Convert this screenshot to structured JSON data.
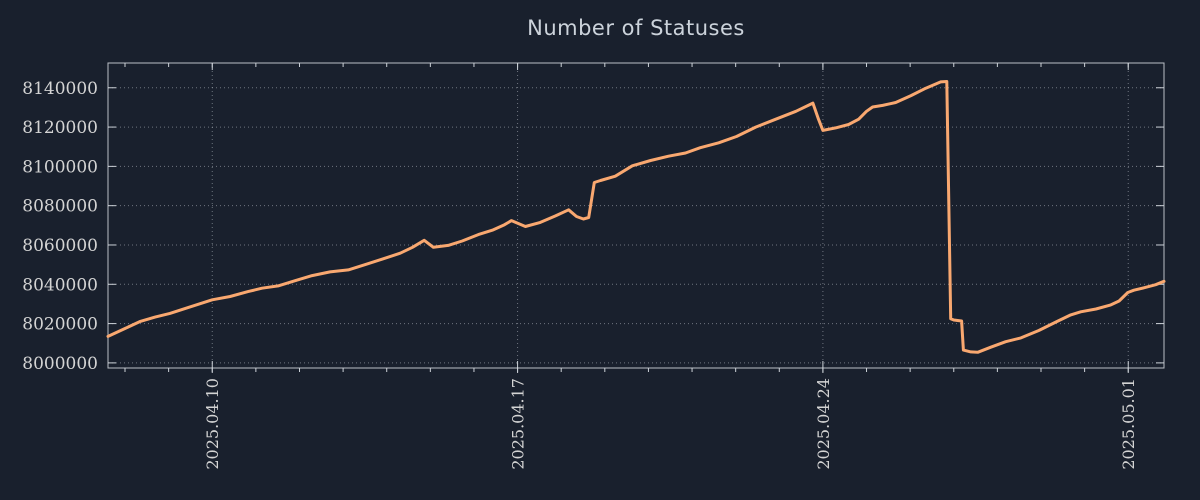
{
  "title": "Number of Statuses",
  "colors": {
    "background": "#19202d",
    "line": "#f9a870",
    "grid": "#c3c9d1",
    "axis": "#cdd2d8",
    "tick_text": "#d4d4d4",
    "title_text": "#ccd3db"
  },
  "chart_data": {
    "type": "line",
    "title": "Number of Statuses",
    "legend": "none",
    "grid": "dotted",
    "x_axis": {
      "note": "x positions are days since 2025-04-06 00:00",
      "range": [
        1.61,
        25.82
      ],
      "tick_pos": [
        4,
        11,
        18,
        25
      ],
      "tick_labels": [
        "2025.04.10",
        "2025.04.17",
        "2025.04.24",
        "2025.05.01"
      ],
      "minor_tick_step": 1
    },
    "y_axis": {
      "range": [
        7997400,
        8152600
      ],
      "tick_values": [
        8000000,
        8020000,
        8040000,
        8060000,
        8080000,
        8100000,
        8120000,
        8140000
      ],
      "tick_labels": [
        "8000000",
        "8020000",
        "8040000",
        "8060000",
        "8080000",
        "8100000",
        "8120000",
        "8140000"
      ]
    },
    "series": [
      {
        "name": "statuses",
        "color": "#f9a870",
        "points": [
          [
            1.61,
            8013500
          ],
          [
            2.0,
            8017500
          ],
          [
            2.34,
            8021000
          ],
          [
            2.69,
            8023300
          ],
          [
            3.03,
            8025200
          ],
          [
            3.49,
            8028500
          ],
          [
            4.0,
            8032100
          ],
          [
            4.41,
            8033800
          ],
          [
            4.82,
            8036300
          ],
          [
            5.14,
            8038000
          ],
          [
            5.51,
            8039200
          ],
          [
            5.9,
            8041800
          ],
          [
            6.29,
            8044400
          ],
          [
            6.7,
            8046300
          ],
          [
            7.12,
            8047300
          ],
          [
            7.51,
            8050000
          ],
          [
            7.9,
            8052800
          ],
          [
            8.31,
            8055800
          ],
          [
            8.59,
            8058800
          ],
          [
            8.86,
            8062400
          ],
          [
            9.07,
            8058800
          ],
          [
            9.41,
            8059800
          ],
          [
            9.73,
            8062000
          ],
          [
            10.1,
            8065300
          ],
          [
            10.42,
            8067500
          ],
          [
            10.7,
            8070300
          ],
          [
            10.86,
            8072400
          ],
          [
            11.18,
            8069400
          ],
          [
            11.52,
            8071500
          ],
          [
            11.87,
            8074800
          ],
          [
            12.17,
            8077900
          ],
          [
            12.35,
            8074500
          ],
          [
            12.51,
            8073200
          ],
          [
            12.63,
            8074000
          ],
          [
            12.76,
            8091800
          ],
          [
            12.9,
            8092800
          ],
          [
            13.24,
            8095000
          ],
          [
            13.63,
            8100300
          ],
          [
            14.05,
            8103000
          ],
          [
            14.46,
            8105200
          ],
          [
            14.85,
            8106800
          ],
          [
            15.19,
            8109500
          ],
          [
            15.61,
            8112000
          ],
          [
            16.02,
            8115200
          ],
          [
            16.46,
            8120000
          ],
          [
            16.92,
            8124000
          ],
          [
            17.38,
            8128000
          ],
          [
            17.77,
            8132200
          ],
          [
            17.9,
            8124000
          ],
          [
            18.0,
            8118300
          ],
          [
            18.29,
            8119600
          ],
          [
            18.59,
            8121300
          ],
          [
            18.82,
            8124000
          ],
          [
            19.0,
            8128000
          ],
          [
            19.14,
            8130200
          ],
          [
            19.37,
            8131000
          ],
          [
            19.67,
            8132500
          ],
          [
            20.02,
            8136000
          ],
          [
            20.36,
            8139800
          ],
          [
            20.7,
            8143000
          ],
          [
            20.84,
            8143200
          ],
          [
            20.93,
            8022500
          ],
          [
            21.0,
            8021800
          ],
          [
            21.18,
            8021300
          ],
          [
            21.22,
            8006500
          ],
          [
            21.39,
            8005600
          ],
          [
            21.55,
            8005400
          ],
          [
            21.85,
            8008000
          ],
          [
            22.19,
            8010800
          ],
          [
            22.54,
            8012700
          ],
          [
            22.95,
            8016500
          ],
          [
            23.36,
            8021000
          ],
          [
            23.68,
            8024400
          ],
          [
            23.91,
            8026000
          ],
          [
            24.26,
            8027400
          ],
          [
            24.6,
            8029500
          ],
          [
            24.79,
            8031500
          ],
          [
            24.99,
            8035800
          ],
          [
            25.13,
            8037000
          ],
          [
            25.38,
            8038300
          ],
          [
            25.63,
            8039800
          ],
          [
            25.82,
            8041500
          ]
        ]
      }
    ]
  }
}
